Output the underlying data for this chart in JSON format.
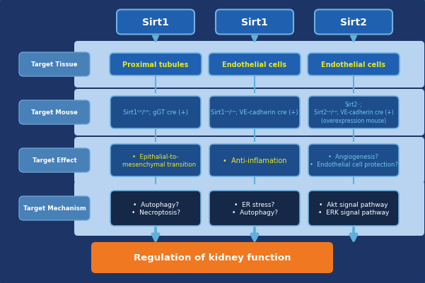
{
  "bg_color": "#1c3566",
  "light_band_color": "#b8d4f0",
  "dark_box_color": "#1e4d8c",
  "darker_box_color": "#152848",
  "header_box_color": "#2060b0",
  "orange_color": "#f07820",
  "arrow_color": "#60b0dc",
  "yellow_text": "#e8e820",
  "white_text": "#ffffff",
  "cyan_text": "#70c8e8",
  "label_bg": "#4880b8",
  "figsize": [
    6.01,
    4.02
  ],
  "dpi": 100,
  "top_labels": [
    "Sirt1",
    "Sirt1",
    "Sirt2"
  ],
  "row_label_texts": [
    "Target Tissue",
    "Target Mouse",
    "Target Effect",
    "Target Mechanism"
  ],
  "tissue_texts": [
    "Proximal tubules",
    "Endothelial cells",
    "Endothelial cells"
  ],
  "mouse_texts": [
    "Sirt1ᶜᵒ/ᶜᵒ; gGT cre (+)",
    "Sirt1ᶜᵒ/ᶜᵒ; VE-cadherin cre (+)",
    "Sirt2⁻;\nSirt2ᶜᵒ/ᶜᵒ; VE-cadherin cre (+)\n(overexpression mouse)"
  ],
  "effect_texts": [
    "•  Epithalial-to-\n    mesenchymal transition",
    "•  Anti-inflamation",
    "•  Angiogenesis?\n•  Endothelial cell protection?"
  ],
  "effect_tcolors": [
    "#e8e820",
    "#e8e820",
    "#70c8e8"
  ],
  "mech_texts": [
    "•  Autophagy?\n•  Necroptosis?",
    "•  ER stress?\n•  Autophagy?",
    "•  Akt signal pathway\n•  ERK signal pathway"
  ],
  "bottom_label": "Regulation of kidney function"
}
